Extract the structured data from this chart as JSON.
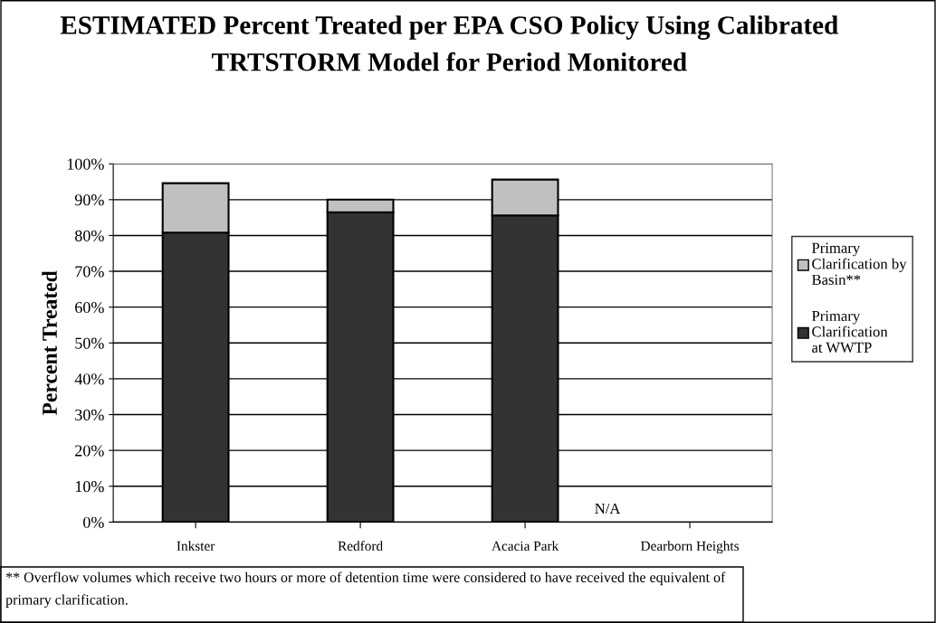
{
  "chart_data": {
    "type": "bar",
    "stacked": true,
    "title": "ESTIMATED Percent Treated per EPA CSO Policy Using Calibrated TRTSTORM Model for Period Monitored",
    "ylabel": "Percent Treated",
    "categories": [
      "Inkster",
      "Redford",
      "Acacia Park",
      "Dearborn Heights"
    ],
    "series": [
      {
        "name": "Primary Clarification at WWTP",
        "color": "#333333",
        "values": [
          80.8,
          86.5,
          85.6,
          null
        ]
      },
      {
        "name": "Primary Clarification by Basin**",
        "color": "#c0c0c0",
        "values": [
          13.8,
          3.5,
          10.0,
          null
        ]
      }
    ],
    "ylim": [
      0,
      100
    ],
    "yticks": [
      {
        "value": 0,
        "label": "0%"
      },
      {
        "value": 10,
        "label": "10%"
      },
      {
        "value": 20,
        "label": "20%"
      },
      {
        "value": 30,
        "label": "30%"
      },
      {
        "value": 40,
        "label": "40%"
      },
      {
        "value": 50,
        "label": "50%"
      },
      {
        "value": 60,
        "label": "60%"
      },
      {
        "value": 70,
        "label": "70%"
      },
      {
        "value": 80,
        "label": "80%"
      },
      {
        "value": 90,
        "label": "90%"
      },
      {
        "value": 100,
        "label": "100%"
      }
    ],
    "grid": "y",
    "legend": "right",
    "annotations": [
      "N/A",
      "** Overflow volumes which receive two hours or more of detention time were considered to have received the equivalent of primary clarification."
    ]
  }
}
